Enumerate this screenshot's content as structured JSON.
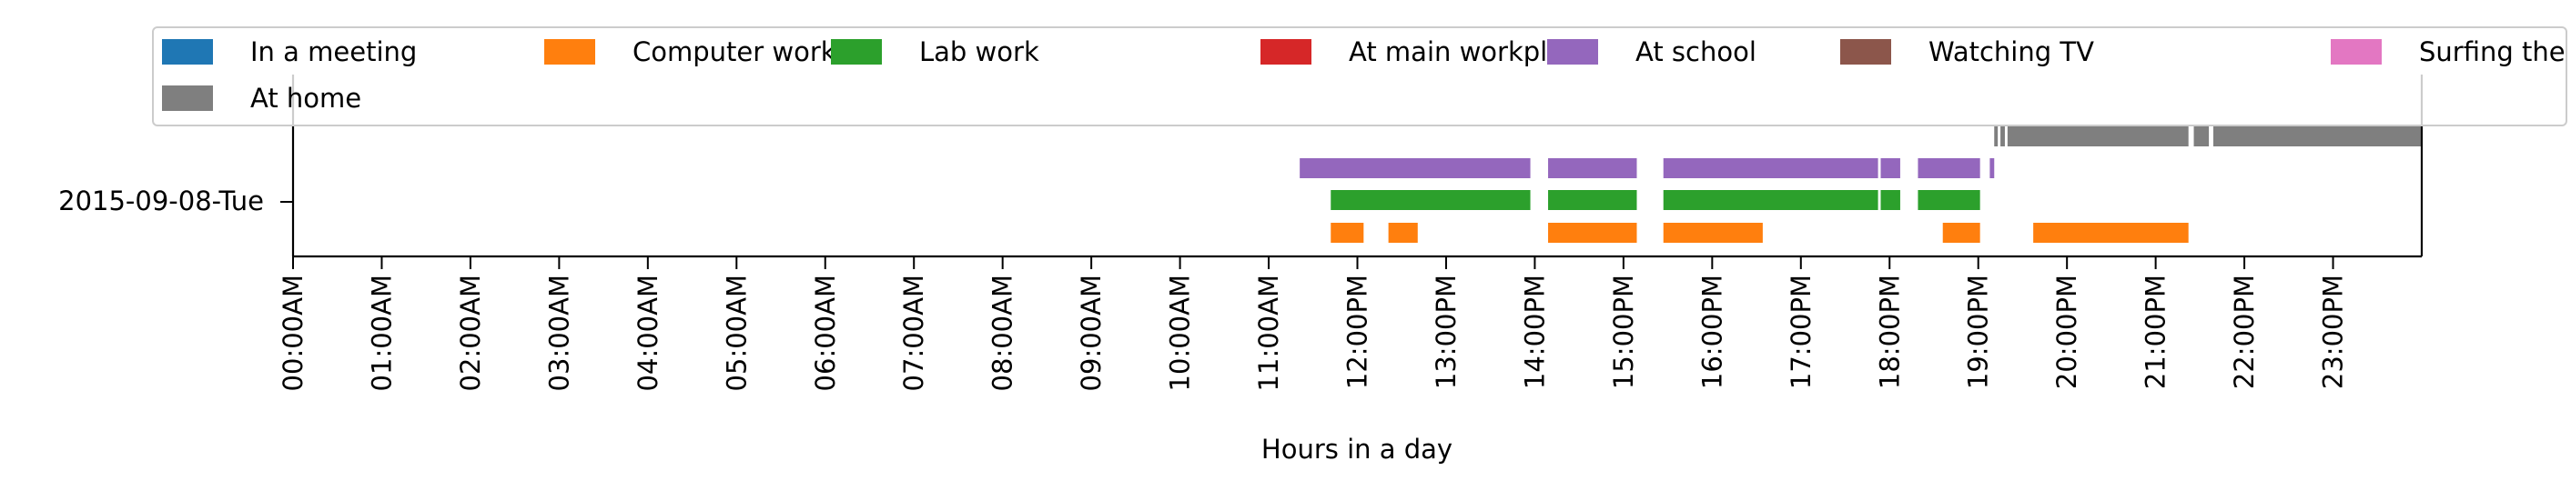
{
  "chart_data": {
    "type": "timeline",
    "title": "",
    "xlabel": "Hours in a day",
    "ylabel": "",
    "xlim_hours": [
      0,
      24
    ],
    "y_categories": [
      "2015-09-08-Tue"
    ],
    "x_tick_labels": [
      "00:00AM",
      "01:00AM",
      "02:00AM",
      "03:00AM",
      "04:00AM",
      "05:00AM",
      "06:00AM",
      "07:00AM",
      "08:00AM",
      "09:00AM",
      "10:00AM",
      "11:00AM",
      "12:00PM",
      "13:00PM",
      "14:00PM",
      "15:00PM",
      "16:00PM",
      "17:00PM",
      "18:00PM",
      "19:00PM",
      "20:00PM",
      "21:00PM",
      "22:00PM",
      "23:00PM"
    ],
    "legend_position": "top",
    "grid": false,
    "legend": [
      {
        "label": "In a meeting",
        "color": "#1f77b4"
      },
      {
        "label": "Computer work",
        "color": "#ff7f0e"
      },
      {
        "label": "Lab work",
        "color": "#2ca02c"
      },
      {
        "label": "At main workplace",
        "color": "#d62728"
      },
      {
        "label": "At school",
        "color": "#9467bd"
      },
      {
        "label": "Watching TV",
        "color": "#8c564b"
      },
      {
        "label": "Surfing the internet",
        "color": "#e377c2"
      },
      {
        "label": "At home",
        "color": "#7f7f7f"
      }
    ],
    "series": [
      {
        "name": "Computer work",
        "color": "#ff7f0e",
        "lane": 0,
        "segments": [
          [
            11.7,
            12.07
          ],
          [
            12.35,
            12.68
          ],
          [
            14.15,
            15.15
          ],
          [
            15.45,
            16.57
          ],
          [
            18.6,
            19.02
          ],
          [
            19.62,
            21.37
          ]
        ]
      },
      {
        "name": "Lab work",
        "color": "#2ca02c",
        "lane": 1,
        "segments": [
          [
            11.7,
            13.95
          ],
          [
            14.15,
            15.15
          ],
          [
            15.45,
            17.87
          ],
          [
            17.9,
            18.12
          ],
          [
            18.32,
            19.02
          ]
        ]
      },
      {
        "name": "At school",
        "color": "#9467bd",
        "lane": 2,
        "segments": [
          [
            11.35,
            13.95
          ],
          [
            14.15,
            15.15
          ],
          [
            15.45,
            17.87
          ],
          [
            17.9,
            18.12
          ],
          [
            18.32,
            19.02
          ],
          [
            19.13,
            19.18
          ]
        ]
      },
      {
        "name": "At home",
        "color": "#7f7f7f",
        "lane": 3,
        "segments": [
          [
            19.18,
            19.22
          ],
          [
            19.25,
            19.3
          ],
          [
            19.33,
            21.37
          ],
          [
            21.43,
            21.6
          ],
          [
            21.65,
            23.99
          ]
        ]
      }
    ]
  }
}
